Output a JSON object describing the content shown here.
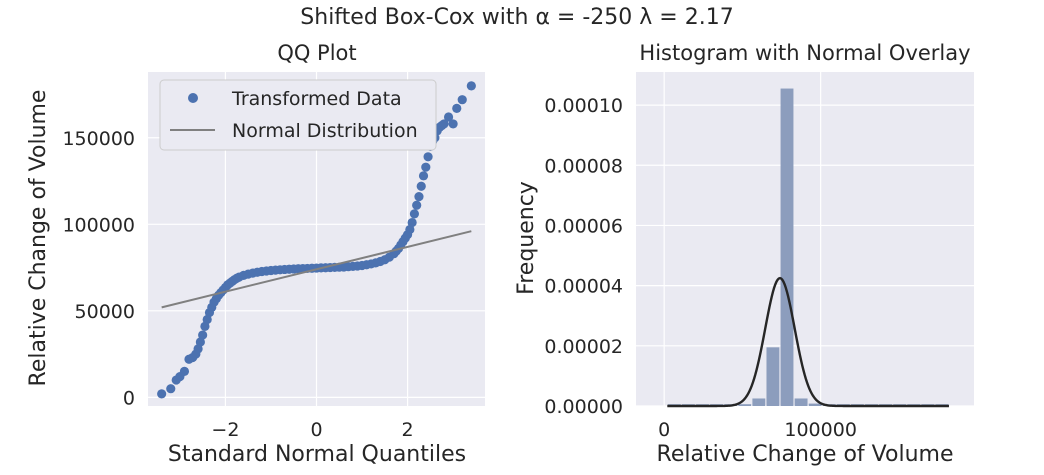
{
  "figure": {
    "suptitle": "Shifted Box-Cox with α = -250 λ = 2.17",
    "colors": {
      "axes_bg": "#eaeaf2",
      "grid": "#ffffff",
      "points": "#4c72b0",
      "normal_line": "#808080",
      "hist_bars": "#8c9dbd",
      "density": "#262626"
    }
  },
  "chart_data": [
    {
      "type": "scatter",
      "title": "QQ Plot",
      "xlabel": "Standard Normal Quantiles",
      "ylabel": "Relative Change of Volume",
      "xlim": [
        -3.7,
        3.7
      ],
      "ylim": [
        -5000,
        188000
      ],
      "xticks": [
        -2,
        0,
        2
      ],
      "xtick_labels": [
        "−2",
        "0",
        "2"
      ],
      "yticks": [
        0,
        50000,
        100000,
        150000
      ],
      "ytick_labels": [
        "0",
        "50000",
        "100000",
        "150000"
      ],
      "grid": true,
      "legend": {
        "placement": "upper-left",
        "entries": [
          {
            "label": "Transformed Data",
            "marker": "point"
          },
          {
            "label": "Normal Distribution",
            "marker": "line"
          }
        ]
      },
      "series": [
        {
          "name": "Transformed Data",
          "kind": "points",
          "x": [
            -3.4,
            -3.2,
            -3.08,
            -3.0,
            -2.9,
            -2.8,
            -2.72,
            -2.65,
            -2.6,
            -2.55,
            -2.5,
            -2.45,
            -2.4,
            -2.35,
            -2.3,
            -2.25,
            -2.2,
            -2.15,
            -2.1,
            -2.05,
            -2.0,
            -1.95,
            -1.9,
            -1.85,
            -1.8,
            -1.75,
            -1.7,
            -1.6,
            -1.5,
            -1.4,
            -1.3,
            -1.2,
            -1.1,
            -1.0,
            -0.9,
            -0.8,
            -0.7,
            -0.6,
            -0.5,
            -0.4,
            -0.3,
            -0.2,
            -0.1,
            0.0,
            0.1,
            0.2,
            0.3,
            0.4,
            0.5,
            0.6,
            0.7,
            0.8,
            0.9,
            1.0,
            1.1,
            1.2,
            1.3,
            1.4,
            1.5,
            1.6,
            1.7,
            1.75,
            1.8,
            1.85,
            1.9,
            1.95,
            2.0,
            2.05,
            2.1,
            2.15,
            2.2,
            2.25,
            2.3,
            2.35,
            2.4,
            2.45,
            2.5,
            2.55,
            2.6,
            2.65,
            2.7,
            2.75,
            2.8,
            2.9,
            3.0,
            3.08,
            3.2,
            3.4
          ],
          "y": [
            2000,
            5000,
            10000,
            12000,
            15000,
            22000,
            23000,
            25000,
            28000,
            32000,
            36000,
            41000,
            45000,
            49000,
            52000,
            55000,
            57000,
            59000,
            60500,
            62000,
            63500,
            65000,
            66000,
            67000,
            68000,
            68800,
            69500,
            70500,
            71200,
            71800,
            72300,
            72700,
            73000,
            73300,
            73500,
            73700,
            73900,
            74000,
            74200,
            74300,
            74400,
            74500,
            74600,
            74700,
            74800,
            74900,
            75000,
            75100,
            75200,
            75300,
            75500,
            75700,
            75900,
            76200,
            76600,
            77100,
            77700,
            78500,
            79500,
            81000,
            83000,
            84500,
            86000,
            88000,
            90000,
            92000,
            94000,
            97000,
            101000,
            106000,
            111000,
            116000,
            122000,
            128000,
            133000,
            139000,
            145000,
            148000,
            150000,
            154000,
            156000,
            157000,
            158000,
            162000,
            158000,
            167000,
            172000,
            180000
          ]
        },
        {
          "name": "Normal Distribution",
          "kind": "line",
          "x": [
            -3.4,
            3.4
          ],
          "y": [
            52000,
            96000
          ]
        }
      ]
    },
    {
      "type": "bar",
      "title": "Histogram with Normal Overlay",
      "xlabel": "Relative Change of Volume",
      "ylabel": "Frequency",
      "xlim": [
        -18000,
        198000
      ],
      "ylim": [
        0,
        0.000111
      ],
      "xticks": [
        0,
        100000
      ],
      "xtick_labels": [
        "0",
        "100000"
      ],
      "yticks": [
        0,
        2e-05,
        4e-05,
        6e-05,
        8e-05,
        0.0001
      ],
      "ytick_labels": [
        "0.00000",
        "0.00002",
        "0.00004",
        "0.00006",
        "0.00008",
        "0.00010"
      ],
      "grid": true,
      "bins": {
        "left_edges": [
          2000,
          11000,
          20000,
          29000,
          38000,
          47000,
          56000,
          65000,
          74000,
          83000,
          92000,
          101000,
          110000,
          119000,
          128000,
          137000,
          146000,
          155000,
          164000,
          173000
        ],
        "width": 9000,
        "values": [
          6e-07,
          6e-07,
          6e-07,
          6e-07,
          6e-07,
          6e-07,
          2.5e-06,
          1.95e-05,
          0.0001055,
          2.5e-06,
          8e-07,
          6e-07,
          6e-07,
          6e-07,
          6e-07,
          6e-07,
          6e-07,
          6e-07,
          6e-07,
          6e-07
        ]
      },
      "normal_overlay": {
        "mean": 74000,
        "std": 9400,
        "peak": 4.25e-05
      }
    }
  ]
}
